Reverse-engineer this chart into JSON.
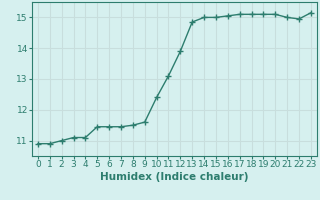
{
  "x": [
    0,
    1,
    2,
    3,
    4,
    5,
    6,
    7,
    8,
    9,
    10,
    11,
    12,
    13,
    14,
    15,
    16,
    17,
    18,
    19,
    20,
    21,
    22,
    23
  ],
  "y": [
    10.9,
    10.9,
    11.0,
    11.1,
    11.1,
    11.45,
    11.45,
    11.45,
    11.5,
    11.6,
    12.4,
    13.1,
    13.9,
    14.85,
    15.0,
    15.0,
    15.05,
    15.1,
    15.1,
    15.1,
    15.1,
    15.0,
    14.95,
    15.15
  ],
  "xlim": [
    -0.5,
    23.5
  ],
  "ylim": [
    10.5,
    15.5
  ],
  "yticks": [
    11,
    12,
    13,
    14,
    15
  ],
  "xticks": [
    0,
    1,
    2,
    3,
    4,
    5,
    6,
    7,
    8,
    9,
    10,
    11,
    12,
    13,
    14,
    15,
    16,
    17,
    18,
    19,
    20,
    21,
    22,
    23
  ],
  "xlabel": "Humidex (Indice chaleur)",
  "line_color": "#2d7d6e",
  "marker": "+",
  "marker_size": 4,
  "bg_color": "#d6f0ef",
  "grid_color": "#c8dedd",
  "tick_label_fontsize": 6.5,
  "xlabel_fontsize": 7.5,
  "title": ""
}
